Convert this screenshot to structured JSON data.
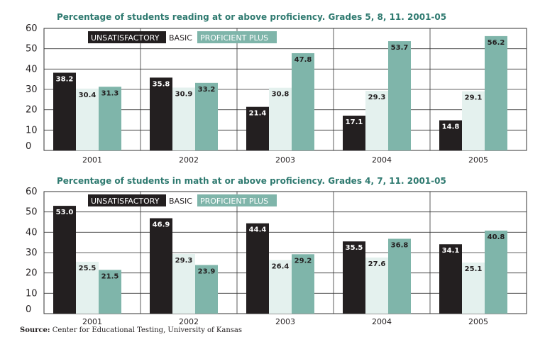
{
  "colors": {
    "unsatisfactory": "#231f20",
    "basic": "#e4f1ee",
    "proficient_plus": "#7fb5aa",
    "title": "#2f7a70",
    "grid": "#333333"
  },
  "source": {
    "label": "Source:",
    "text": "Center for Educational Testing, University of Kansas"
  },
  "chart_data": [
    {
      "type": "bar",
      "title": "Percentage of students reading at or above proficiency. Grades 5, 8, 11. 2001-05",
      "categories": [
        "2001",
        "2002",
        "2003",
        "2004",
        "2005"
      ],
      "yticks": [
        "0",
        "10",
        "20",
        "30",
        "40",
        "50",
        "60"
      ],
      "ylim": [
        0,
        60
      ],
      "grid": true,
      "legend_position": "top-left",
      "series": [
        {
          "name": "UNSATISFACTORY",
          "values": [
            38.2,
            35.8,
            21.4,
            17.1,
            14.8
          ],
          "labels": [
            "38.2",
            "35.8",
            "21.4",
            "17.1",
            "14.8"
          ]
        },
        {
          "name": "BASIC",
          "values": [
            30.4,
            30.9,
            30.8,
            29.3,
            29.1
          ],
          "labels": [
            "30.4",
            "30.9",
            "30.8",
            "29.3",
            "29.1"
          ]
        },
        {
          "name": "PROFICIENT PLUS",
          "values": [
            31.3,
            33.2,
            47.8,
            53.7,
            56.2
          ],
          "labels": [
            "31.3",
            "33.2",
            "47.8",
            "53.7",
            "56.2"
          ]
        }
      ]
    },
    {
      "type": "bar",
      "title": "Percentage of students in math at or above proficiency. Grades 4, 7, 11. 2001-05",
      "categories": [
        "2001",
        "2002",
        "2003",
        "2004",
        "2005"
      ],
      "yticks": [
        "0",
        "10",
        "20",
        "30",
        "40",
        "50",
        "60"
      ],
      "ylim": [
        0,
        60
      ],
      "grid": true,
      "legend_position": "top-left",
      "series": [
        {
          "name": "UNSATISFACTORY",
          "values": [
            53.0,
            46.9,
            44.4,
            35.5,
            34.1
          ],
          "labels": [
            "53.0",
            "46.9",
            "44.4",
            "35.5",
            "34.1"
          ]
        },
        {
          "name": "BASIC",
          "values": [
            25.5,
            29.3,
            26.4,
            27.6,
            25.1
          ],
          "labels": [
            "25.5",
            "29.3",
            "26.4",
            "27.6",
            "25.1"
          ]
        },
        {
          "name": "PROFICIENT PLUS",
          "values": [
            21.5,
            23.9,
            29.2,
            36.8,
            40.8
          ],
          "labels": [
            "21.5",
            "23.9",
            "29.2",
            "36.8",
            "40.8"
          ]
        }
      ]
    }
  ]
}
